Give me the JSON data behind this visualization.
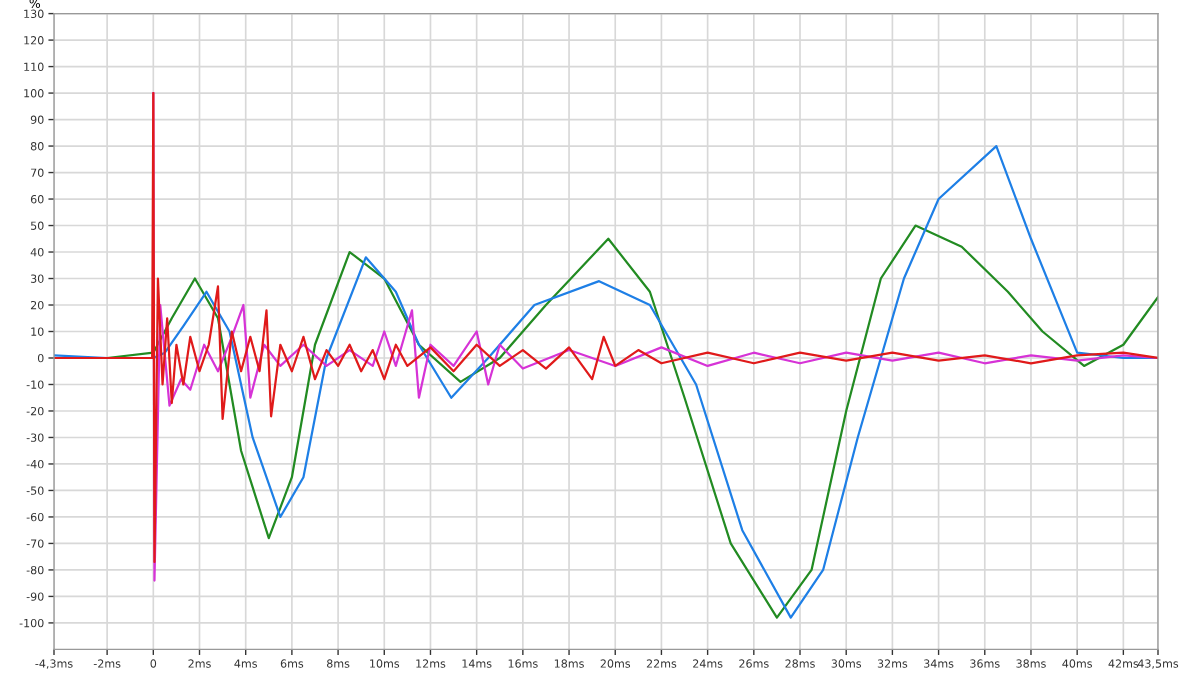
{
  "chart_data": {
    "type": "line",
    "ylabel": "%",
    "xlim": [
      -4.3,
      43.5
    ],
    "ylim": [
      -110,
      130
    ],
    "xticks": [
      {
        "value": -4.3,
        "label": "-4,3ms"
      },
      {
        "value": -2,
        "label": "-2ms"
      },
      {
        "value": 0,
        "label": "0"
      },
      {
        "value": 2,
        "label": "2ms"
      },
      {
        "value": 4,
        "label": "4ms"
      },
      {
        "value": 6,
        "label": "6ms"
      },
      {
        "value": 8,
        "label": "8ms"
      },
      {
        "value": 10,
        "label": "10ms"
      },
      {
        "value": 12,
        "label": "12ms"
      },
      {
        "value": 14,
        "label": "14ms"
      },
      {
        "value": 16,
        "label": "16ms"
      },
      {
        "value": 18,
        "label": "18ms"
      },
      {
        "value": 20,
        "label": "20ms"
      },
      {
        "value": 22,
        "label": "22ms"
      },
      {
        "value": 24,
        "label": "24ms"
      },
      {
        "value": 26,
        "label": "26ms"
      },
      {
        "value": 28,
        "label": "28ms"
      },
      {
        "value": 30,
        "label": "30ms"
      },
      {
        "value": 32,
        "label": "32ms"
      },
      {
        "value": 34,
        "label": "34ms"
      },
      {
        "value": 36,
        "label": "36ms"
      },
      {
        "value": 38,
        "label": "38ms"
      },
      {
        "value": 40,
        "label": "40ms"
      },
      {
        "value": 42,
        "label": "42ms"
      },
      {
        "value": 43.5,
        "label": "43,5ms"
      }
    ],
    "yticks": [
      -100,
      -90,
      -80,
      -70,
      -60,
      -50,
      -40,
      -30,
      -20,
      -10,
      0,
      10,
      20,
      30,
      40,
      50,
      60,
      70,
      80,
      90,
      100,
      110,
      120,
      130
    ],
    "grid": true,
    "line_style": "solid",
    "marker": "none",
    "series": [
      {
        "color": "#228b22",
        "x": [
          -4.3,
          -2,
          0,
          0.8,
          1.8,
          2.8,
          3.8,
          5.0,
          6.0,
          7.0,
          8.5,
          10.0,
          11.5,
          13.3,
          15.0,
          17.0,
          19.7,
          21.5,
          23.0,
          25.0,
          27.0,
          28.5,
          30.0,
          31.5,
          33.0,
          35.0,
          37.0,
          38.5,
          40.3,
          42.0,
          43.5
        ],
        "values": [
          0,
          0,
          2,
          15,
          30,
          15,
          -35,
          -68,
          -45,
          5,
          40,
          30,
          5,
          -9,
          0,
          20,
          45,
          25,
          -15,
          -70,
          -98,
          -80,
          -20,
          30,
          50,
          42,
          25,
          10,
          -3,
          5,
          23
        ]
      },
      {
        "color": "#1e7fe6",
        "x": [
          -4.3,
          -2,
          0,
          0.5,
          1.3,
          2.3,
          3.3,
          4.3,
          5.5,
          6.5,
          7.5,
          9.2,
          10.5,
          11.5,
          12.9,
          14.5,
          16.5,
          19.3,
          21.5,
          23.5,
          25.5,
          27.6,
          29.0,
          30.5,
          32.5,
          34.0,
          36.5,
          38.0,
          40.0,
          42.0,
          43.5
        ],
        "values": [
          1,
          0,
          0,
          2,
          12,
          25,
          10,
          -30,
          -60,
          -45,
          0,
          38,
          25,
          5,
          -15,
          0,
          20,
          29,
          20,
          -10,
          -65,
          -98,
          -80,
          -30,
          30,
          60,
          80,
          45,
          2,
          0,
          0
        ]
      },
      {
        "color": "#d633d6",
        "x": [
          0,
          0.05,
          0.3,
          0.7,
          1.2,
          1.6,
          2.2,
          2.8,
          3.4,
          3.9,
          4.2,
          4.8,
          5.5,
          6.5,
          7.5,
          8.5,
          9.5,
          10.0,
          10.5,
          11.2,
          11.5,
          12.0,
          13.0,
          14.0,
          14.5,
          15.0,
          16.0,
          18.0,
          20.0,
          22.0,
          24.0,
          26.0,
          28.0,
          30.0,
          32.0,
          34.0,
          36.0,
          38.0,
          40.0,
          42.0,
          43.5
        ],
        "values": [
          100,
          -84,
          20,
          -18,
          -8,
          -12,
          5,
          -5,
          8,
          20,
          -15,
          5,
          -3,
          5,
          -3,
          3,
          -3,
          10,
          -3,
          18,
          -15,
          5,
          -3,
          10,
          -10,
          5,
          -4,
          3,
          -3,
          4,
          -3,
          2,
          -2,
          2,
          -1,
          2,
          -2,
          1,
          -1,
          1,
          0
        ]
      },
      {
        "color": "#e01a1a",
        "x": [
          -4.3,
          -0.05,
          0,
          0.05,
          0.2,
          0.4,
          0.6,
          0.8,
          1.0,
          1.3,
          1.6,
          2.0,
          2.4,
          2.8,
          3.0,
          3.4,
          3.8,
          4.2,
          4.6,
          4.9,
          5.1,
          5.5,
          6.0,
          6.5,
          7.0,
          7.5,
          8.0,
          8.5,
          9.0,
          9.5,
          10.0,
          10.5,
          11.0,
          12.0,
          13.0,
          14.0,
          15.0,
          16.0,
          17.0,
          18.0,
          19.0,
          19.5,
          20.0,
          21.0,
          22.0,
          24.0,
          26.0,
          28.0,
          30.0,
          32.0,
          34.0,
          36.0,
          38.0,
          40.0,
          42.0,
          43.5
        ],
        "values": [
          0,
          0,
          100,
          -77,
          30,
          -10,
          15,
          -17,
          5,
          -10,
          8,
          -5,
          5,
          27,
          -23,
          10,
          -5,
          8,
          -5,
          18,
          -22,
          5,
          -5,
          8,
          -8,
          3,
          -3,
          5,
          -5,
          3,
          -8,
          5,
          -3,
          4,
          -5,
          5,
          -3,
          3,
          -4,
          4,
          -8,
          8,
          -3,
          3,
          -2,
          2,
          -2,
          2,
          -1,
          2,
          -1,
          1,
          -2,
          1,
          2,
          0
        ]
      }
    ]
  }
}
